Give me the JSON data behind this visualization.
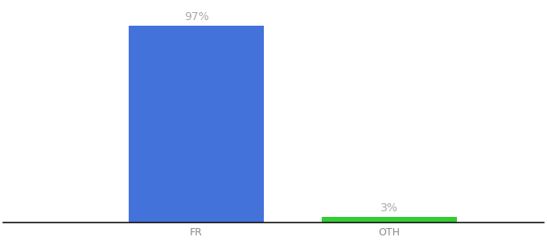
{
  "categories": [
    "FR",
    "OTH"
  ],
  "values": [
    97,
    3
  ],
  "bar_colors": [
    "#4472db",
    "#33cc33"
  ],
  "label_texts": [
    "97%",
    "3%"
  ],
  "label_color": "#aaaaaa",
  "background_color": "#ffffff",
  "ylim": [
    0,
    108
  ],
  "bar_width": 0.7,
  "label_fontsize": 10,
  "tick_fontsize": 9,
  "tick_color": "#888888",
  "axis_line_color": "#111111"
}
